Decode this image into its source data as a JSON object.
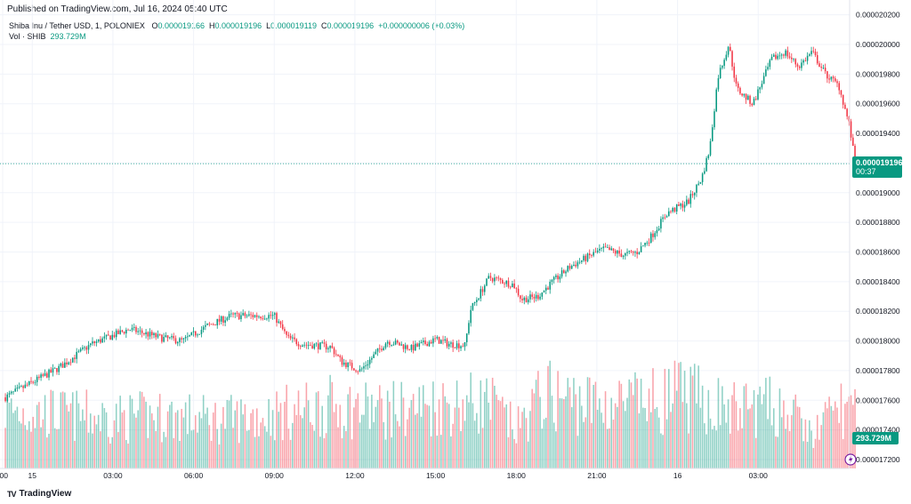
{
  "published": "Published on TradingView.com, Jul 16, 2024 05:40 UTC",
  "legend": {
    "symbol": "Shiba Inu / Tether USD, 1, POLONIEX",
    "o_label": "O",
    "o": "0.000019166",
    "h_label": "H",
    "h": "0.000019196",
    "l_label": "L",
    "l": "0.000019119",
    "c_label": "C",
    "c": "0.000019196",
    "change": "+0.000000006 (+0.03%)",
    "vol_label": "Vol · SHIB",
    "vol": "293.729M"
  },
  "colors": {
    "up": "#089981",
    "down": "#f23645",
    "grid": "#f0f3fa",
    "text": "#131722"
  },
  "brand": {
    "name": "TradingView",
    "mark": "TV"
  },
  "chart_data": {
    "type": "candlestick",
    "title": "Shiba Inu / Tether USD, 1, POLONIEX",
    "y_axis": {
      "ticks": [
        "0.000020200",
        "0.000020000",
        "0.000019800",
        "0.000019600",
        "0.000019400",
        "0.000019200",
        "0.000019000",
        "0.000018800",
        "0.000018600",
        "0.000018400",
        "0.000018200",
        "0.000018000",
        "0.000017800",
        "0.000017600",
        "0.000017400",
        "0.000017200"
      ],
      "tick_values": [
        20.2,
        20.0,
        19.8,
        19.6,
        19.4,
        19.2,
        19.0,
        18.8,
        18.6,
        18.4,
        18.2,
        18.0,
        17.8,
        17.6,
        17.4,
        17.2
      ],
      "unit_scale": 1e-06,
      "range": [
        17.14,
        20.3
      ]
    },
    "x_axis": {
      "labels": [
        ":00",
        "15",
        "03:00",
        "06:00",
        "09:00",
        "12:00",
        "15:00",
        "18:00",
        "21:00",
        "16",
        "03:00"
      ],
      "label_hours": [
        -0.1,
        1,
        4,
        7,
        10,
        13,
        16,
        19,
        22,
        25,
        28
      ],
      "range_hours": [
        -0.2,
        31.4
      ]
    },
    "last_price": {
      "value": 19.196,
      "label": "0.000019196",
      "countdown": "00:37"
    },
    "last_volume": {
      "label": "293.729M"
    },
    "price_path": [
      [
        0,
        17.62
      ],
      [
        1.0,
        17.72
      ],
      [
        2.0,
        17.82
      ],
      [
        3.2,
        17.98
      ],
      [
        4.6,
        18.08
      ],
      [
        5.8,
        18.02
      ],
      [
        6.6,
        18.0
      ],
      [
        7.5,
        18.1
      ],
      [
        8.4,
        18.17
      ],
      [
        10.0,
        18.17
      ],
      [
        10.5,
        18.02
      ],
      [
        11.0,
        17.98
      ],
      [
        12.1,
        17.96
      ],
      [
        12.5,
        17.86
      ],
      [
        13.2,
        17.8
      ],
      [
        14.2,
        18.0
      ],
      [
        15.1,
        17.95
      ],
      [
        16.0,
        18.01
      ],
      [
        16.5,
        17.98
      ],
      [
        17.1,
        17.97
      ],
      [
        17.3,
        18.21
      ],
      [
        18.0,
        18.43
      ],
      [
        18.9,
        18.38
      ],
      [
        19.2,
        18.28
      ],
      [
        19.8,
        18.3
      ],
      [
        20.3,
        18.39
      ],
      [
        21.0,
        18.5
      ],
      [
        22.0,
        18.6
      ],
      [
        22.3,
        18.62
      ],
      [
        23.0,
        18.58
      ],
      [
        23.5,
        18.6
      ],
      [
        24.0,
        18.7
      ],
      [
        24.6,
        18.86
      ],
      [
        25.4,
        18.94
      ],
      [
        25.9,
        19.1
      ],
      [
        26.2,
        19.3
      ],
      [
        26.5,
        19.78
      ],
      [
        26.9,
        20.0
      ],
      [
        27.2,
        19.7
      ],
      [
        27.8,
        19.6
      ],
      [
        28.5,
        19.9
      ],
      [
        29.0,
        19.95
      ],
      [
        29.5,
        19.85
      ],
      [
        30.0,
        19.95
      ],
      [
        30.5,
        19.8
      ],
      [
        31.0,
        19.72
      ],
      [
        31.4,
        19.45
      ],
      [
        31.6,
        19.2
      ]
    ],
    "volume_profile_M": [
      [
        0,
        300
      ],
      [
        2,
        280
      ],
      [
        4,
        260
      ],
      [
        6,
        270
      ],
      [
        8,
        250
      ],
      [
        10,
        280
      ],
      [
        12,
        320
      ],
      [
        14,
        300
      ],
      [
        15,
        310
      ],
      [
        16,
        330
      ],
      [
        18,
        340
      ],
      [
        19,
        200
      ],
      [
        20,
        380
      ],
      [
        22,
        330
      ],
      [
        24,
        340
      ],
      [
        25,
        380
      ],
      [
        26,
        350
      ],
      [
        27,
        300
      ],
      [
        28,
        320
      ],
      [
        29,
        310
      ],
      [
        30,
        170
      ],
      [
        31,
        320
      ],
      [
        31.6,
        293
      ]
    ]
  }
}
